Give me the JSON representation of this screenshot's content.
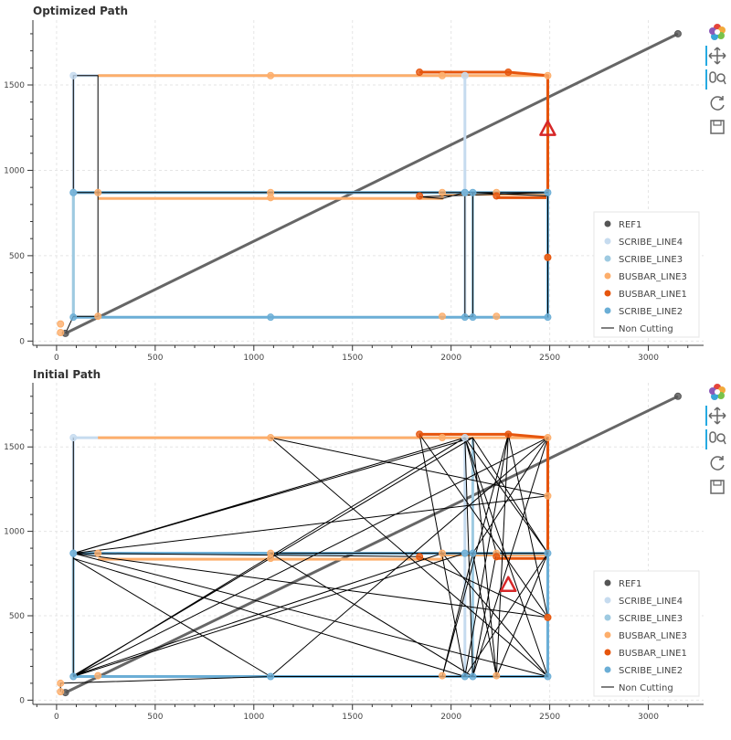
{
  "toolbar": {
    "tools": [
      "bokeh-logo-icon",
      "pan-icon",
      "wheel-zoom-icon",
      "reset-icon",
      "save-icon"
    ]
  },
  "chart_data": [
    {
      "type": "line",
      "title": "Optimized Path",
      "xlim": [
        -120,
        3280
      ],
      "ylim": [
        -25,
        1880
      ],
      "xticks": [
        0,
        500,
        1000,
        1500,
        2000,
        2500,
        3000
      ],
      "yticks": [
        0,
        500,
        1000,
        1500
      ],
      "grid": true,
      "legend_position": "bottom-right",
      "legend": [
        "REF1",
        "SCRIBE_LINE4",
        "SCRIBE_LINE3",
        "BUSBAR_LINE3",
        "BUSBAR_LINE1",
        "SCRIBE_LINE2",
        "Non Cutting"
      ],
      "colors": {
        "REF1": "#555555",
        "SCRIBE_LINE4": "#c6dbef",
        "SCRIBE_LINE3": "#9ecae1",
        "BUSBAR_LINE3": "#fdae6b",
        "BUSBAR_LINE1": "#e6550d",
        "SCRIBE_LINE2": "#6baed6",
        "Non Cutting": "#000000"
      },
      "marker_triangle": {
        "x": 2490,
        "y": 1240,
        "color": "#d62728"
      },
      "series": [
        {
          "name": "REF1",
          "kind": "line",
          "width": 3,
          "points": [
            [
              45,
              45
            ],
            [
              3150,
              1800
            ]
          ]
        },
        {
          "name": "SCRIBE_LINE4",
          "kind": "line",
          "width": 3,
          "points": [
            [
              85,
              145
            ],
            [
              85,
              1555
            ],
            [
              2070,
              1555
            ],
            [
              2070,
              145
            ]
          ]
        },
        {
          "name": "SCRIBE_LINE3",
          "kind": "line",
          "width": 3,
          "points": [
            [
              85,
              145
            ],
            [
              85,
              870
            ],
            [
              2110,
              870
            ],
            [
              2110,
              145
            ]
          ]
        },
        {
          "name": "BUSBAR_LINE3",
          "kind": "line",
          "width": 3,
          "points": [
            [
              210,
              835
            ],
            [
              1955,
              835
            ],
            [
              1955,
              860
            ],
            [
              2490,
              860
            ],
            [
              2490,
              1555
            ],
            [
              210,
              1555
            ]
          ]
        },
        {
          "name": "BUSBAR_LINE1",
          "kind": "line",
          "width": 3,
          "points": [
            [
              1840,
              1575
            ],
            [
              2290,
              1575
            ],
            [
              2490,
              1555
            ],
            [
              2490,
              840
            ],
            [
              2230,
              840
            ]
          ]
        },
        {
          "name": "SCRIBE_LINE2",
          "kind": "line",
          "width": 3,
          "points": [
            [
              85,
              140
            ],
            [
              2490,
              140
            ],
            [
              2490,
              870
            ],
            [
              85,
              870
            ]
          ]
        },
        {
          "name": "Non Cutting",
          "kind": "line",
          "width": 1,
          "points": [
            [
              45,
              45
            ],
            [
              85,
              145
            ],
            [
              210,
              145
            ],
            [
              210,
              1555
            ],
            [
              85,
              1555
            ],
            [
              85,
              870
            ],
            [
              2490,
              870
            ],
            [
              1840,
              845
            ],
            [
              1955,
              835
            ],
            [
              2070,
              870
            ],
            [
              2070,
              145
            ],
            [
              2110,
              145
            ],
            [
              2110,
              870
            ],
            [
              2490,
              850
            ],
            [
              2490,
              140
            ]
          ]
        },
        {
          "name": "REF1",
          "kind": "points",
          "points": [
            [
              45,
              45
            ],
            [
              3150,
              1800
            ]
          ]
        },
        {
          "name": "SCRIBE_LINE4",
          "kind": "points",
          "points": [
            [
              85,
              1555
            ],
            [
              85,
              870
            ],
            [
              2070,
              1555
            ],
            [
              2070,
              870
            ]
          ]
        },
        {
          "name": "BUSBAR_LINE3",
          "kind": "points",
          "points": [
            [
              20,
              50
            ],
            [
              20,
              100
            ],
            [
              210,
              145
            ],
            [
              210,
              870
            ],
            [
              1085,
              1555
            ],
            [
              1085,
              870
            ],
            [
              1085,
              840
            ],
            [
              1955,
              870
            ],
            [
              1955,
              145
            ],
            [
              2230,
              145
            ],
            [
              2230,
              870
            ],
            [
              2490,
              490
            ],
            [
              2490,
              1555
            ],
            [
              1955,
              1555
            ]
          ]
        },
        {
          "name": "BUSBAR_LINE1",
          "kind": "points",
          "points": [
            [
              1840,
              1575
            ],
            [
              2290,
              1575
            ],
            [
              1840,
              850
            ],
            [
              2230,
              850
            ],
            [
              2490,
              490
            ]
          ]
        },
        {
          "name": "SCRIBE_LINE2",
          "kind": "points",
          "points": [
            [
              85,
              140
            ],
            [
              1085,
              140
            ],
            [
              2070,
              140
            ],
            [
              2110,
              140
            ],
            [
              2490,
              140
            ],
            [
              85,
              870
            ],
            [
              2070,
              870
            ],
            [
              2110,
              870
            ],
            [
              2490,
              870
            ]
          ]
        }
      ]
    },
    {
      "type": "line",
      "title": "Initial Path",
      "xlim": [
        -120,
        3280
      ],
      "ylim": [
        -25,
        1880
      ],
      "xticks": [
        0,
        500,
        1000,
        1500,
        2000,
        2500,
        3000
      ],
      "yticks": [
        0,
        500,
        1000,
        1500
      ],
      "grid": true,
      "legend_position": "bottom-right",
      "legend": [
        "REF1",
        "SCRIBE_LINE4",
        "SCRIBE_LINE3",
        "BUSBAR_LINE3",
        "BUSBAR_LINE1",
        "SCRIBE_LINE2",
        "Non Cutting"
      ],
      "colors": {
        "REF1": "#555555",
        "SCRIBE_LINE4": "#c6dbef",
        "SCRIBE_LINE3": "#9ecae1",
        "BUSBAR_LINE3": "#fdae6b",
        "BUSBAR_LINE1": "#e6550d",
        "SCRIBE_LINE2": "#6baed6",
        "Non Cutting": "#000000"
      },
      "marker_triangle": {
        "x": 2290,
        "y": 680,
        "color": "#d62728"
      },
      "series": [
        {
          "name": "REF1",
          "kind": "line",
          "width": 3,
          "points": [
            [
              45,
              45
            ],
            [
              3150,
              1800
            ]
          ]
        },
        {
          "name": "SCRIBE_LINE4",
          "kind": "line",
          "width": 3,
          "points": [
            [
              85,
              145
            ],
            [
              85,
              1555
            ],
            [
              2070,
              1555
            ],
            [
              2070,
              145
            ]
          ]
        },
        {
          "name": "SCRIBE_LINE3",
          "kind": "line",
          "width": 3,
          "points": [
            [
              85,
              145
            ],
            [
              85,
              870
            ],
            [
              2110,
              870
            ],
            [
              2110,
              145
            ],
            [
              2110,
              1555
            ]
          ]
        },
        {
          "name": "BUSBAR_LINE3",
          "kind": "line",
          "width": 3,
          "points": [
            [
              210,
              835
            ],
            [
              1955,
              835
            ],
            [
              1955,
              860
            ],
            [
              2490,
              860
            ],
            [
              2490,
              1555
            ],
            [
              210,
              1555
            ]
          ]
        },
        {
          "name": "BUSBAR_LINE1",
          "kind": "line",
          "width": 3,
          "points": [
            [
              1840,
              1575
            ],
            [
              2290,
              1575
            ],
            [
              2490,
              1555
            ],
            [
              2490,
              840
            ],
            [
              2230,
              840
            ]
          ]
        },
        {
          "name": "SCRIBE_LINE2",
          "kind": "line",
          "width": 3,
          "points": [
            [
              85,
              140
            ],
            [
              2490,
              140
            ],
            [
              2490,
              870
            ],
            [
              85,
              870
            ]
          ]
        },
        {
          "name": "Non Cutting",
          "kind": "line",
          "width": 1,
          "points": [
            [
              85,
              1555
            ],
            [
              85,
              140
            ],
            [
              2070,
              1555
            ],
            [
              85,
              870
            ],
            [
              2490,
              1210
            ],
            [
              1085,
              1555
            ],
            [
              2490,
              140
            ],
            [
              1085,
              140
            ],
            [
              85,
              840
            ],
            [
              2070,
              140
            ],
            [
              1840,
              1575
            ],
            [
              2490,
              490
            ],
            [
              85,
              870
            ],
            [
              2110,
              1555
            ],
            [
              2230,
              140
            ],
            [
              2290,
              1575
            ],
            [
              1955,
              140
            ],
            [
              2110,
              870
            ],
            [
              2490,
              1555
            ],
            [
              85,
              140
            ],
            [
              2070,
              870
            ],
            [
              2490,
              870
            ],
            [
              1085,
              870
            ],
            [
              2110,
              140
            ],
            [
              2230,
              870
            ],
            [
              2070,
              1555
            ],
            [
              2490,
              140
            ],
            [
              1955,
              870
            ],
            [
              85,
              145
            ],
            [
              2110,
              1555
            ],
            [
              2490,
              870
            ],
            [
              2070,
              140
            ],
            [
              2290,
              1575
            ],
            [
              2490,
              490
            ],
            [
              1840,
              850
            ],
            [
              85,
              870
            ],
            [
              2490,
              140
            ]
          ]
        },
        {
          "name": "Non Cutting",
          "kind": "line",
          "width": 1,
          "points": [
            [
              20,
              50
            ],
            [
              20,
              100
            ],
            [
              1085,
              140
            ],
            [
              2490,
              1555
            ],
            [
              2110,
              140
            ],
            [
              2070,
              1555
            ],
            [
              2490,
              870
            ],
            [
              2230,
              140
            ],
            [
              2110,
              870
            ]
          ]
        },
        {
          "name": "REF1",
          "kind": "points",
          "points": [
            [
              45,
              45
            ],
            [
              3150,
              1800
            ]
          ]
        },
        {
          "name": "SCRIBE_LINE4",
          "kind": "points",
          "points": [
            [
              85,
              1555
            ],
            [
              85,
              870
            ],
            [
              2070,
              1555
            ],
            [
              2070,
              870
            ]
          ]
        },
        {
          "name": "BUSBAR_LINE3",
          "kind": "points",
          "points": [
            [
              20,
              50
            ],
            [
              20,
              100
            ],
            [
              210,
              145
            ],
            [
              210,
              870
            ],
            [
              1085,
              1555
            ],
            [
              1085,
              870
            ],
            [
              1085,
              840
            ],
            [
              1955,
              870
            ],
            [
              1955,
              145
            ],
            [
              2230,
              145
            ],
            [
              2230,
              870
            ],
            [
              2490,
              490
            ],
            [
              2490,
              1555
            ],
            [
              1955,
              1555
            ],
            [
              2490,
              1210
            ]
          ]
        },
        {
          "name": "BUSBAR_LINE1",
          "kind": "points",
          "points": [
            [
              1840,
              1575
            ],
            [
              2290,
              1575
            ],
            [
              1840,
              850
            ],
            [
              2230,
              850
            ],
            [
              2490,
              490
            ]
          ]
        },
        {
          "name": "SCRIBE_LINE2",
          "kind": "points",
          "points": [
            [
              85,
              140
            ],
            [
              1085,
              140
            ],
            [
              2070,
              140
            ],
            [
              2110,
              140
            ],
            [
              2490,
              140
            ],
            [
              85,
              870
            ],
            [
              2070,
              870
            ],
            [
              2110,
              870
            ],
            [
              2490,
              870
            ]
          ]
        }
      ]
    }
  ]
}
